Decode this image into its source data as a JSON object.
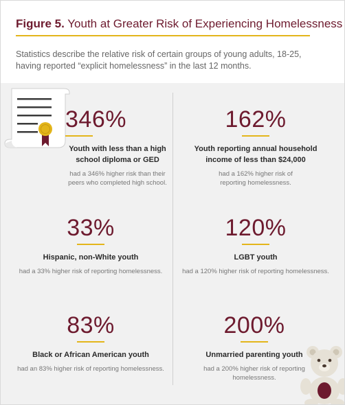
{
  "figure": {
    "label": "Figure 5.",
    "title": " Youth at Greater Risk of Experiencing Homelessness",
    "subtitle": "Statistics describe the relative risk of certain groups of young adults, 18-25, having reported “explicit homelessness” in the last 12 months."
  },
  "stats": [
    {
      "value": "346%",
      "group": "Youth with less than a high school diploma or GED",
      "desc": "had a 346% higher risk than their peers who completed high school."
    },
    {
      "value": "162%",
      "group": "Youth reporting annual household income of less than $24,000",
      "desc": "had a 162% higher risk of reporting homelessness."
    },
    {
      "value": "33%",
      "group": "Hispanic, non-White youth",
      "desc": "had a 33% higher risk of reporting homelessness."
    },
    {
      "value": "120%",
      "group": "LGBT youth",
      "desc": "had a 120% higher risk of reporting homelessness."
    },
    {
      "value": "83%",
      "group": "Black or African American youth",
      "desc": "had an 83% higher risk of reporting homelessness."
    },
    {
      "value": "200%",
      "group": "Unmarried parenting youth",
      "desc": "had a 200% higher risk of reporting homelessness."
    }
  ],
  "colors": {
    "accent": "#6d1a2e",
    "gold": "#e3b51a",
    "background": "#f1f1f1"
  },
  "icons": {
    "top_left": "diploma-scroll-icon",
    "bottom_right": "teddy-bear-icon"
  }
}
